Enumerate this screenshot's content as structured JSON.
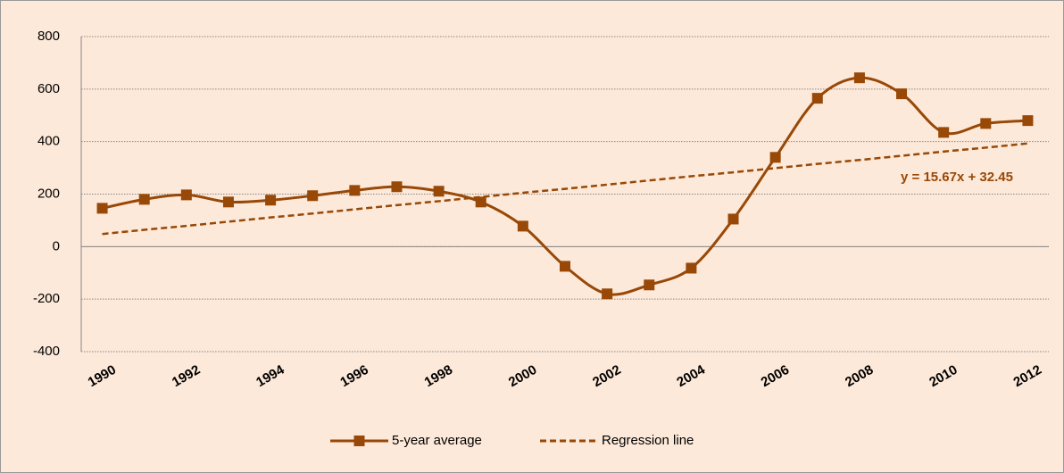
{
  "chart_data": {
    "type": "line",
    "categories": [
      "1990",
      null,
      "1992",
      null,
      "1994",
      null,
      "1996",
      null,
      "1998",
      null,
      "2000",
      null,
      "2002",
      null,
      "2004",
      null,
      "2006",
      null,
      "2008",
      null,
      "2010",
      null,
      "2012"
    ],
    "series": [
      {
        "name": "5-year average",
        "color": "#984807",
        "marker": "square",
        "smooth": true,
        "dashed": false,
        "values": [
          146,
          180,
          197,
          170,
          177,
          194,
          214,
          228,
          211,
          170,
          78,
          -75,
          -180,
          -146,
          -82,
          105,
          340,
          565,
          643,
          582,
          435,
          469,
          480
        ]
      },
      {
        "name": "Regression line",
        "color": "#984807",
        "marker": null,
        "smooth": false,
        "dashed": true,
        "values": [
          48,
          64,
          79,
          95,
          111,
          126,
          142,
          158,
          173,
          189,
          205,
          220,
          236,
          252,
          268,
          283,
          299,
          315,
          330,
          346,
          362,
          377,
          393
        ]
      }
    ],
    "annotation": "y = 15.67x + 32.45",
    "ylim": [
      -400,
      800
    ],
    "yticks": [
      -400,
      -200,
      0,
      200,
      400,
      600,
      800
    ],
    "grid": true,
    "legend": "bottom"
  }
}
